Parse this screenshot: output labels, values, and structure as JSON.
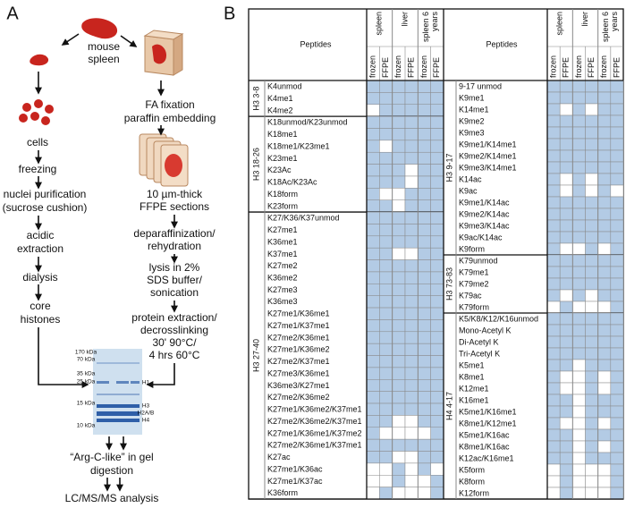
{
  "panel_a": {
    "label": "A",
    "source": [
      "mouse",
      "spleen"
    ],
    "left_steps": {
      "cells": [
        "cells"
      ],
      "freezing": [
        "freezing"
      ],
      "nuclei": [
        "nuclei purification",
        "(sucrose cushion)"
      ],
      "acidic": [
        "acidic",
        "extraction"
      ],
      "dialysis": [
        "dialysis"
      ],
      "core": [
        "core",
        "histones"
      ]
    },
    "right_steps": {
      "fixation": [
        "FA fixation",
        "paraffin embedding"
      ],
      "sections": [
        "10 µm-thick",
        "FFPE sections"
      ],
      "deparaffin": [
        "deparaffinization/",
        "rehydration"
      ],
      "lysis": [
        "lysis in 2%",
        "SDS buffer/",
        "sonication"
      ],
      "extraction": [
        "protein extraction/",
        "decrosslinking",
        "30' 90°C/",
        "4 hrs 60°C"
      ]
    },
    "gel": {
      "markers": [
        "170 kDa",
        "70 kDa",
        "35 kDa",
        "25 kDa",
        "15 kDa",
        "10 kDa"
      ],
      "bands": [
        "H1",
        "H3",
        "H2A/B",
        "H4"
      ]
    },
    "digestion": [
      "“Arg-C-like” in gel",
      "digestion"
    ],
    "analysis": "LC/MS/MS analysis"
  },
  "panel_b": {
    "label": "B",
    "header": {
      "peptides": "Peptides",
      "tissues": [
        {
          "name": [
            "spleen"
          ]
        },
        {
          "name": [
            "liver"
          ]
        },
        {
          "name": [
            "spleen 6",
            "years"
          ]
        }
      ],
      "sub": [
        "frozen",
        "FFPE",
        "frozen",
        "FFPE",
        "frozen",
        "FFPE"
      ]
    },
    "left": {
      "groups": [
        {
          "label": "H3 3-8",
          "rows": [
            {
              "peptide": "K4unmod",
              "detected": [
                1,
                1,
                1,
                1,
                1,
                1
              ]
            },
            {
              "peptide": "K4me1",
              "detected": [
                1,
                1,
                1,
                1,
                1,
                1
              ]
            },
            {
              "peptide": "K4me2",
              "detected": [
                0,
                1,
                1,
                1,
                1,
                1
              ]
            }
          ]
        },
        {
          "label": "H3 18-26",
          "rows": [
            {
              "peptide": "K18unmod/K23unmod",
              "detected": [
                1,
                1,
                1,
                1,
                1,
                1
              ]
            },
            {
              "peptide": "K18me1",
              "detected": [
                1,
                1,
                1,
                1,
                1,
                1
              ]
            },
            {
              "peptide": "K18me1/K23me1",
              "detected": [
                1,
                0,
                1,
                1,
                1,
                1
              ]
            },
            {
              "peptide": "K23me1",
              "detected": [
                1,
                1,
                1,
                1,
                1,
                1
              ]
            },
            {
              "peptide": "K23Ac",
              "detected": [
                1,
                1,
                1,
                0,
                1,
                1
              ]
            },
            {
              "peptide": "K18Ac/K23Ac",
              "detected": [
                1,
                1,
                1,
                0,
                1,
                1
              ]
            },
            {
              "peptide": "K18form",
              "detected": [
                1,
                0,
                0,
                1,
                1,
                1
              ]
            },
            {
              "peptide": "K23form",
              "detected": [
                1,
                1,
                0,
                1,
                1,
                1
              ]
            }
          ]
        },
        {
          "label": "H3 27-40",
          "rows": [
            {
              "peptide": "K27/K36/K37unmod",
              "detected": [
                1,
                1,
                1,
                1,
                1,
                1
              ]
            },
            {
              "peptide": "K27me1",
              "detected": [
                1,
                1,
                1,
                1,
                1,
                1
              ]
            },
            {
              "peptide": "K36me1",
              "detected": [
                1,
                1,
                1,
                1,
                1,
                1
              ]
            },
            {
              "peptide": "K37me1",
              "detected": [
                1,
                1,
                0,
                0,
                1,
                1
              ]
            },
            {
              "peptide": "K27me2",
              "detected": [
                1,
                1,
                1,
                1,
                1,
                1
              ]
            },
            {
              "peptide": "K36me2",
              "detected": [
                1,
                1,
                1,
                1,
                1,
                1
              ]
            },
            {
              "peptide": "K27me3",
              "detected": [
                1,
                1,
                1,
                1,
                1,
                1
              ]
            },
            {
              "peptide": "K36me3",
              "detected": [
                1,
                1,
                1,
                1,
                1,
                1
              ]
            },
            {
              "peptide": "K27me1/K36me1",
              "detected": [
                1,
                1,
                1,
                1,
                1,
                1
              ]
            },
            {
              "peptide": "K27me1/K37me1",
              "detected": [
                1,
                1,
                1,
                1,
                1,
                1
              ]
            },
            {
              "peptide": "K27me2/K36me1",
              "detected": [
                1,
                1,
                1,
                1,
                1,
                1
              ]
            },
            {
              "peptide": "K27me1/K36me2",
              "detected": [
                1,
                1,
                1,
                1,
                1,
                1
              ]
            },
            {
              "peptide": "K27me2/K37me1",
              "detected": [
                1,
                1,
                1,
                1,
                1,
                1
              ]
            },
            {
              "peptide": "K27me3/K36me1",
              "detected": [
                1,
                1,
                1,
                1,
                1,
                1
              ]
            },
            {
              "peptide": "K36me3/K27me1",
              "detected": [
                1,
                1,
                1,
                1,
                1,
                1
              ]
            },
            {
              "peptide": "K27me2/K36me2",
              "detected": [
                1,
                1,
                1,
                1,
                1,
                1
              ]
            },
            {
              "peptide": "K27me1/K36me2/K37me1",
              "detected": [
                1,
                1,
                1,
                1,
                1,
                1
              ]
            },
            {
              "peptide": "K27me2/K36me2/K37me1",
              "detected": [
                1,
                1,
                0,
                0,
                1,
                1
              ]
            },
            {
              "peptide": "K27me1/K36me1/K37me2",
              "detected": [
                1,
                0,
                0,
                0,
                0,
                1
              ]
            },
            {
              "peptide": "K27me2/K36me1/K37me1",
              "detected": [
                1,
                1,
                1,
                1,
                1,
                1
              ]
            },
            {
              "peptide": "K27ac",
              "detected": [
                1,
                1,
                0,
                0,
                1,
                1
              ]
            },
            {
              "peptide": "K27me1/K36ac",
              "detected": [
                0,
                0,
                1,
                0,
                1,
                0
              ]
            },
            {
              "peptide": "K27me1/K37ac",
              "detected": [
                0,
                0,
                1,
                0,
                0,
                1
              ]
            },
            {
              "peptide": "K36form",
              "detected": [
                0,
                1,
                0,
                0,
                0,
                1
              ]
            }
          ]
        }
      ]
    },
    "right": {
      "groups": [
        {
          "label": "H3 9-17",
          "rows": [
            {
              "peptide": "9-17 unmod",
              "detected": [
                1,
                1,
                1,
                1,
                1,
                1
              ]
            },
            {
              "peptide": "K9me1",
              "detected": [
                1,
                1,
                1,
                1,
                1,
                1
              ]
            },
            {
              "peptide": "K14me1",
              "detected": [
                1,
                0,
                1,
                0,
                1,
                1
              ]
            },
            {
              "peptide": "K9me2",
              "detected": [
                1,
                1,
                1,
                1,
                1,
                1
              ]
            },
            {
              "peptide": "K9me3",
              "detected": [
                1,
                1,
                1,
                1,
                1,
                1
              ]
            },
            {
              "peptide": "K9me1/K14me1",
              "detected": [
                1,
                1,
                1,
                1,
                1,
                1
              ]
            },
            {
              "peptide": "K9me2/K14me1",
              "detected": [
                1,
                1,
                1,
                1,
                1,
                1
              ]
            },
            {
              "peptide": "K9me3/K14me1",
              "detected": [
                1,
                1,
                1,
                1,
                1,
                1
              ]
            },
            {
              "peptide": "K14ac",
              "detected": [
                1,
                0,
                1,
                0,
                1,
                1
              ]
            },
            {
              "peptide": "K9ac",
              "detected": [
                1,
                0,
                1,
                0,
                1,
                0
              ]
            },
            {
              "peptide": "K9me1/K14ac",
              "detected": [
                1,
                1,
                1,
                1,
                1,
                1
              ]
            },
            {
              "peptide": "K9me2/K14ac",
              "detected": [
                1,
                1,
                1,
                1,
                1,
                1
              ]
            },
            {
              "peptide": "K9me3/K14ac",
              "detected": [
                1,
                1,
                1,
                1,
                1,
                1
              ]
            },
            {
              "peptide": "K9ac/K14ac",
              "detected": [
                1,
                1,
                1,
                1,
                1,
                1
              ]
            },
            {
              "peptide": "K9form",
              "detected": [
                1,
                0,
                0,
                1,
                0,
                1
              ]
            }
          ]
        },
        {
          "label": "H3 73-83",
          "rows": [
            {
              "peptide": "K79unmod",
              "detected": [
                1,
                1,
                1,
                1,
                1,
                1
              ]
            },
            {
              "peptide": "K79me1",
              "detected": [
                1,
                1,
                1,
                1,
                1,
                1
              ]
            },
            {
              "peptide": "K79me2",
              "detected": [
                1,
                1,
                1,
                1,
                1,
                1
              ]
            },
            {
              "peptide": "K79ac",
              "detected": [
                1,
                0,
                1,
                0,
                1,
                1
              ]
            },
            {
              "peptide": "K79form",
              "detected": [
                0,
                1,
                0,
                0,
                0,
                1
              ]
            }
          ]
        },
        {
          "label": "H4 4-17",
          "rows": [
            {
              "peptide": "K5/K8/K12/K16unmod",
              "detected": [
                1,
                1,
                1,
                1,
                1,
                1
              ]
            },
            {
              "peptide": "Mono-Acetyl K",
              "detected": [
                1,
                1,
                1,
                1,
                1,
                1
              ]
            },
            {
              "peptide": "Di-Acetyl K",
              "detected": [
                1,
                1,
                1,
                1,
                1,
                1
              ]
            },
            {
              "peptide": "Tri-Acetyl K",
              "detected": [
                1,
                1,
                1,
                1,
                1,
                1
              ]
            },
            {
              "peptide": "K5me1",
              "detected": [
                1,
                1,
                0,
                1,
                1,
                1
              ]
            },
            {
              "peptide": "K8me1",
              "detected": [
                1,
                0,
                0,
                1,
                0,
                1
              ]
            },
            {
              "peptide": "K12me1",
              "detected": [
                1,
                0,
                0,
                1,
                0,
                1
              ]
            },
            {
              "peptide": "K16me1",
              "detected": [
                1,
                1,
                0,
                1,
                1,
                1
              ]
            },
            {
              "peptide": "K5me1/K16me1",
              "detected": [
                1,
                1,
                0,
                1,
                1,
                1
              ]
            },
            {
              "peptide": "K8me1/K12me1",
              "detected": [
                1,
                0,
                0,
                1,
                0,
                1
              ]
            },
            {
              "peptide": "K5me1/K16ac",
              "detected": [
                1,
                1,
                0,
                1,
                1,
                1
              ]
            },
            {
              "peptide": "K8me1/K16ac",
              "detected": [
                1,
                1,
                0,
                1,
                0,
                1
              ]
            },
            {
              "peptide": "K12ac/K16me1",
              "detected": [
                1,
                1,
                0,
                1,
                1,
                1
              ]
            },
            {
              "peptide": "K5form",
              "detected": [
                0,
                1,
                0,
                0,
                0,
                1
              ]
            },
            {
              "peptide": "K8form",
              "detected": [
                0,
                1,
                0,
                0,
                0,
                1
              ]
            },
            {
              "peptide": "K12form",
              "detected": [
                0,
                1,
                0,
                0,
                0,
                1
              ]
            }
          ]
        }
      ]
    }
  }
}
